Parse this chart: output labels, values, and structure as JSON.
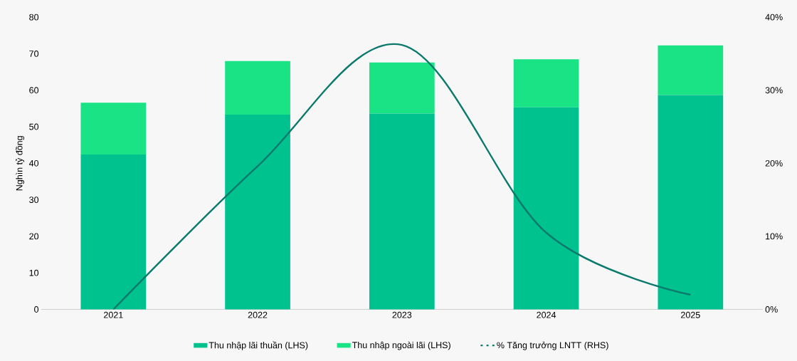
{
  "chart_data": {
    "type": "bar",
    "stacked": true,
    "ylabel": "Nghìn tỷ đồng",
    "categories": [
      "2021",
      "2022",
      "2023",
      "2024",
      "2025"
    ],
    "series": [
      {
        "name": "Thu nhập lãi thuần (LHS)",
        "color": "#00c28f",
        "values": [
          42.4,
          53.3,
          53.6,
          55.3,
          58.7
        ]
      },
      {
        "name": "Thu nhập ngoài lãi (LHS)",
        "color": "#19e384",
        "values": [
          14.2,
          14.7,
          14.0,
          13.2,
          13.6
        ]
      },
      {
        "name": "% Tăng trưởng LNTT (RHS)",
        "type": "line",
        "axis": "y2",
        "color": "#0b7a6d",
        "values": [
          0,
          19.6,
          36.2,
          10.5,
          2.0
        ]
      }
    ],
    "ylim": [
      0,
      80
    ],
    "yticks": [
      0,
      10,
      20,
      30,
      40,
      50,
      60,
      70,
      80
    ],
    "y2lim": [
      0,
      40
    ],
    "y2ticks": [
      {
        "value": 0,
        "label": "0%"
      },
      {
        "value": 10,
        "label": "10%"
      },
      {
        "value": 20,
        "label": "20%"
      },
      {
        "value": 30,
        "label": "30%"
      },
      {
        "value": 40,
        "label": "40%"
      }
    ],
    "grid": false,
    "legend": "bottom"
  }
}
